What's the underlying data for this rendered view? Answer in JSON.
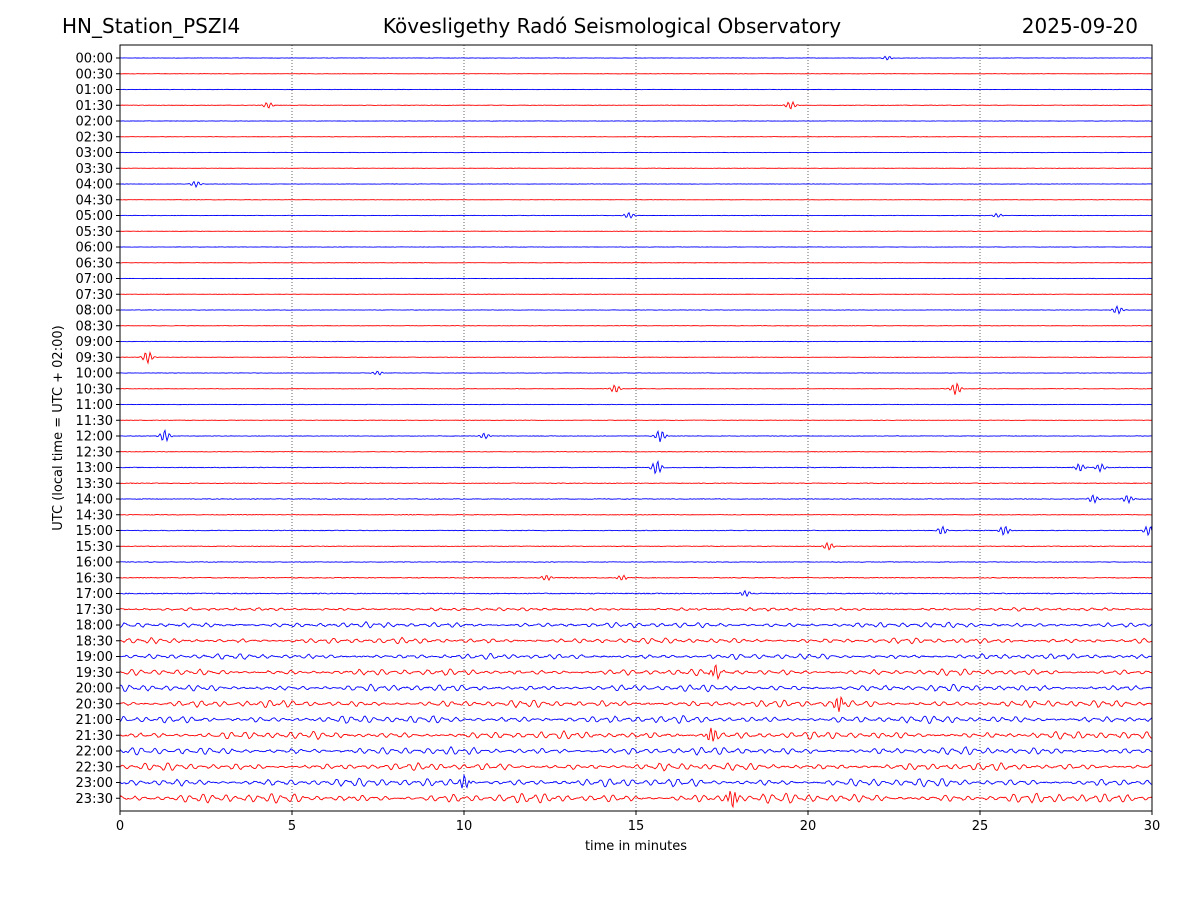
{
  "header": {
    "station": "HN_Station_PSZI4",
    "title": "Kövesligethy Radó Seismological Observatory",
    "date": "2025-09-20"
  },
  "chart_data": {
    "type": "line",
    "title": "Kövesligethy Radó Seismological Observatory",
    "xlabel": "time in minutes",
    "ylabel": "UTC (local time = UTC + 02:00)",
    "xlim": [
      0,
      30
    ],
    "x_ticks": [
      "0",
      "5",
      "10",
      "15",
      "20",
      "25",
      "30"
    ],
    "x_tick_values": [
      0,
      5,
      10,
      15,
      20,
      25,
      30
    ],
    "vertical_gridlines": [
      5,
      10,
      15,
      20,
      25
    ],
    "grid": "vertical dotted at each 5 minutes",
    "trace_colors": [
      "#0000ff",
      "#ff0000"
    ],
    "rows": [
      "00:00",
      "00:30",
      "01:00",
      "01:30",
      "02:00",
      "02:30",
      "03:00",
      "03:30",
      "04:00",
      "04:30",
      "05:00",
      "05:30",
      "06:00",
      "06:30",
      "07:00",
      "07:30",
      "08:00",
      "08:30",
      "09:00",
      "09:30",
      "10:00",
      "10:30",
      "11:00",
      "11:30",
      "12:00",
      "12:30",
      "13:00",
      "13:30",
      "14:00",
      "14:30",
      "15:00",
      "15:30",
      "16:00",
      "16:30",
      "17:00",
      "17:30",
      "18:00",
      "18:30",
      "19:00",
      "19:30",
      "20:00",
      "20:30",
      "21:00",
      "21:30",
      "22:00",
      "22:30",
      "23:00",
      "23:30"
    ],
    "noise_level": [
      0.4,
      0.4,
      0.4,
      0.5,
      0.4,
      0.4,
      0.4,
      0.4,
      0.4,
      0.4,
      0.5,
      0.4,
      0.4,
      0.4,
      0.4,
      0.4,
      0.5,
      0.5,
      0.5,
      0.5,
      0.5,
      0.5,
      0.5,
      0.5,
      0.6,
      0.6,
      0.8,
      0.8,
      0.8,
      0.7,
      0.8,
      0.7,
      0.7,
      0.9,
      1.2,
      1.6,
      3.0,
      3.2,
      3.0,
      3.6,
      3.8,
      4.0,
      4.2,
      4.3,
      4.2,
      4.2,
      4.6,
      5.4
    ],
    "events": [
      {
        "row": 0,
        "t": 22.3,
        "amp": 2
      },
      {
        "row": 3,
        "t": 4.3,
        "amp": 3
      },
      {
        "row": 3,
        "t": 19.5,
        "amp": 4
      },
      {
        "row": 8,
        "t": 2.2,
        "amp": 3
      },
      {
        "row": 10,
        "t": 14.8,
        "amp": 3
      },
      {
        "row": 10,
        "t": 25.5,
        "amp": 2
      },
      {
        "row": 16,
        "t": 29.0,
        "amp": 4
      },
      {
        "row": 19,
        "t": 0.8,
        "amp": 6
      },
      {
        "row": 20,
        "t": 7.5,
        "amp": 2
      },
      {
        "row": 21,
        "t": 14.4,
        "amp": 4
      },
      {
        "row": 21,
        "t": 24.3,
        "amp": 6
      },
      {
        "row": 24,
        "t": 1.3,
        "amp": 6
      },
      {
        "row": 24,
        "t": 10.6,
        "amp": 3
      },
      {
        "row": 24,
        "t": 15.7,
        "amp": 6
      },
      {
        "row": 26,
        "t": 15.6,
        "amp": 7
      },
      {
        "row": 26,
        "t": 27.9,
        "amp": 4
      },
      {
        "row": 26,
        "t": 28.5,
        "amp": 4
      },
      {
        "row": 28,
        "t": 28.3,
        "amp": 4
      },
      {
        "row": 28,
        "t": 29.3,
        "amp": 4
      },
      {
        "row": 30,
        "t": 23.9,
        "amp": 4
      },
      {
        "row": 30,
        "t": 25.7,
        "amp": 5
      },
      {
        "row": 30,
        "t": 29.9,
        "amp": 5
      },
      {
        "row": 31,
        "t": 20.6,
        "amp": 4
      },
      {
        "row": 33,
        "t": 12.4,
        "amp": 3
      },
      {
        "row": 33,
        "t": 14.6,
        "amp": 3
      },
      {
        "row": 34,
        "t": 18.2,
        "amp": 3
      },
      {
        "row": 39,
        "t": 17.3,
        "amp": 6
      },
      {
        "row": 41,
        "t": 20.9,
        "amp": 8
      },
      {
        "row": 43,
        "t": 17.2,
        "amp": 8
      },
      {
        "row": 46,
        "t": 10.0,
        "amp": 7
      },
      {
        "row": 47,
        "t": 17.8,
        "amp": 9
      }
    ]
  }
}
